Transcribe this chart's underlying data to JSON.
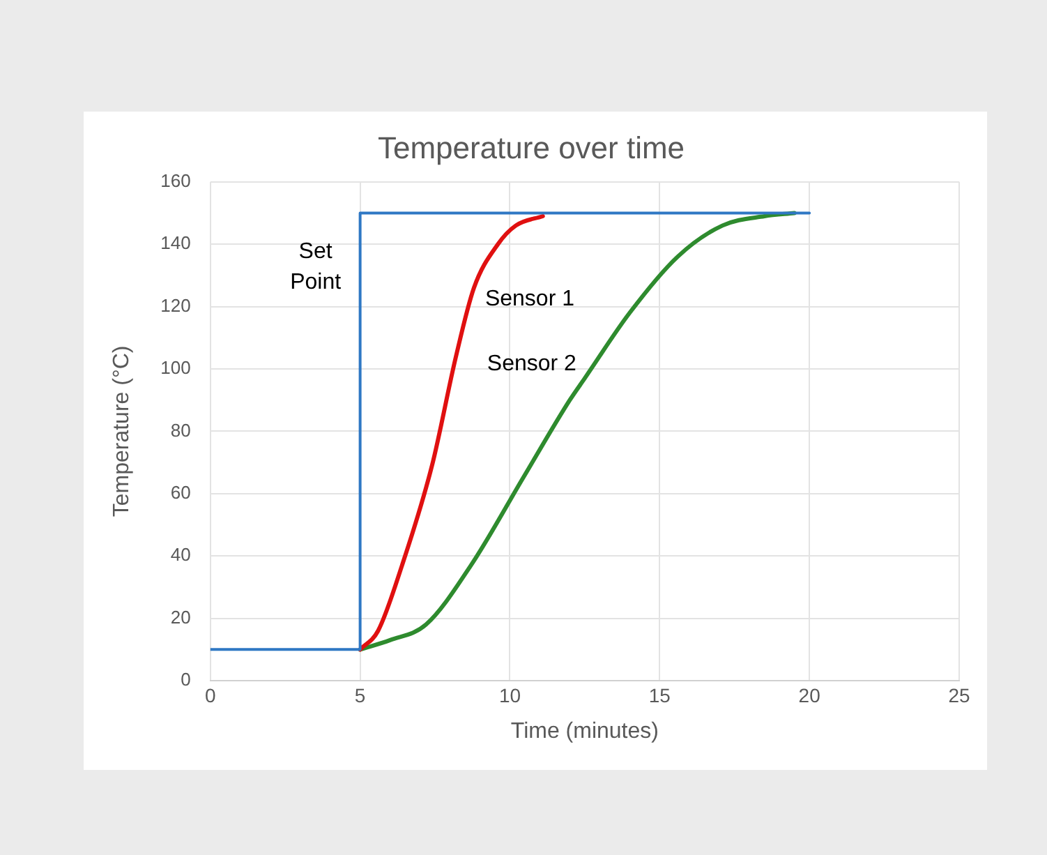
{
  "chart_data": {
    "type": "line",
    "title": "Temperature over time",
    "xlabel": "Time (minutes)",
    "ylabel": "Temperature (°C)",
    "xlim": [
      0,
      25
    ],
    "xticks": [
      0,
      5,
      10,
      15,
      20,
      25
    ],
    "ylim": [
      0,
      160
    ],
    "yticks": [
      0,
      20,
      40,
      60,
      80,
      100,
      120,
      140,
      160
    ],
    "grid": true,
    "legend": false,
    "marker": "none",
    "line_style": "solid",
    "series": [
      {
        "name": "Set Point",
        "color": "#2f78c4",
        "x": [
          0,
          5,
          5,
          20
        ],
        "values": [
          10,
          10,
          150,
          150
        ]
      },
      {
        "name": "Sensor 1",
        "color": "#e01010",
        "x": [
          5,
          5.6,
          6.4,
          7.4,
          8.2,
          8.8,
          9.6,
          10.2,
          11.1
        ],
        "values": [
          10,
          16,
          37,
          69,
          104,
          126,
          140,
          146,
          149
        ]
      },
      {
        "name": "Sensor 2",
        "color": "#2e8b2e",
        "x": [
          5,
          6,
          7.2,
          8.7,
          10.5,
          12,
          12.5,
          14,
          15.6,
          17.1,
          18.5,
          19.5
        ],
        "values": [
          10,
          13,
          18,
          37,
          66,
          90,
          97,
          118,
          136,
          146,
          149,
          150
        ]
      }
    ]
  }
}
